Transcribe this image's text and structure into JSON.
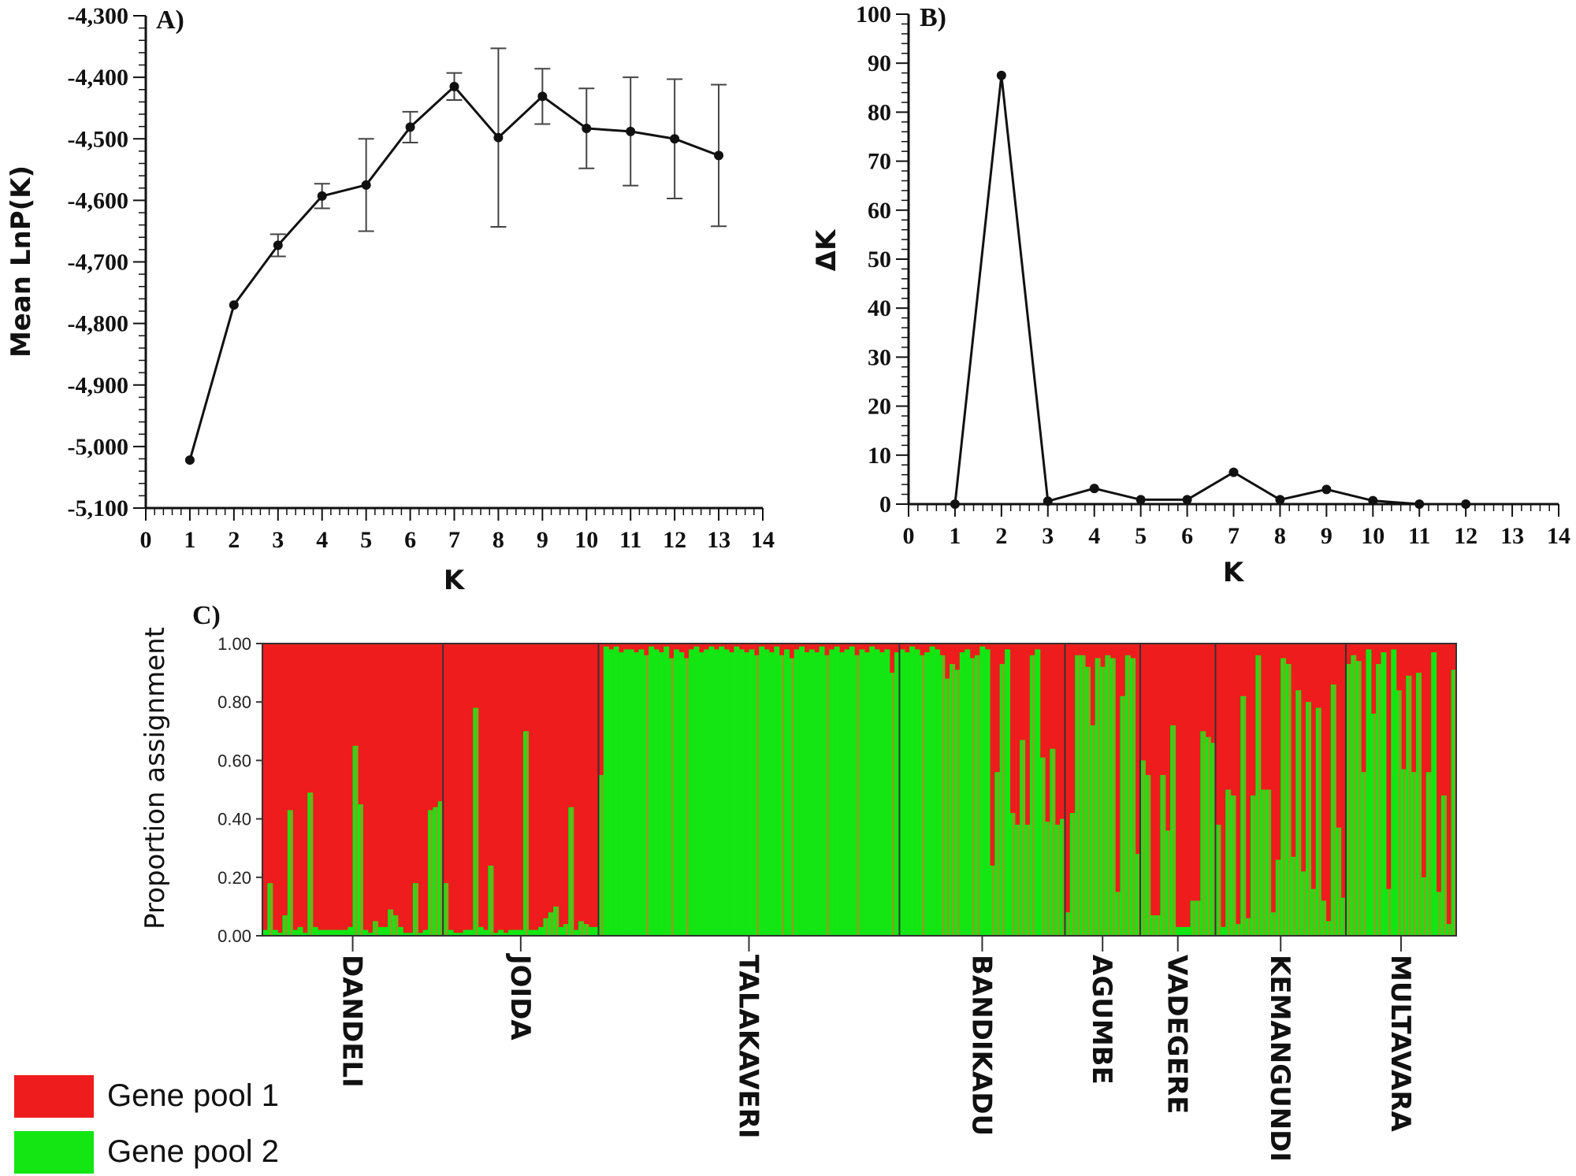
{
  "colors": {
    "gene_pool_1": "#ee1c1c",
    "gene_pool_2": "#13e613",
    "stripe": "#9a9a22",
    "line": "#111111"
  },
  "chart_data": [
    {
      "id": "A",
      "panel_label": "A)",
      "type": "line",
      "title": "",
      "xlabel": "K",
      "ylabel": "Mean LnP(K)",
      "xlim": [
        0,
        14
      ],
      "ylim": [
        -5100,
        -4300
      ],
      "x_ticks": [
        0,
        1,
        2,
        3,
        4,
        5,
        6,
        7,
        8,
        9,
        10,
        11,
        12,
        13,
        14
      ],
      "y_ticks": [
        -4300,
        -4400,
        -4500,
        -4600,
        -4700,
        -4800,
        -4900,
        -5000,
        -5100
      ],
      "y_tick_labels": [
        "-4,300",
        "-4,400",
        "-4,500",
        "-4,600",
        "-4,700",
        "-4,800",
        "-4,900",
        "-5,000",
        "-5,100"
      ],
      "x": [
        1,
        2,
        3,
        4,
        5,
        6,
        7,
        8,
        9,
        10,
        11,
        12,
        13
      ],
      "y": [
        -5022,
        -4770,
        -4673,
        -4593,
        -4575,
        -4481,
        -4415,
        -4498,
        -4431,
        -4483,
        -4488,
        -4500,
        -4527
      ],
      "error": [
        0,
        0,
        18,
        20,
        75,
        25,
        22,
        145,
        45,
        65,
        88,
        97,
        115
      ]
    },
    {
      "id": "B",
      "panel_label": "B)",
      "type": "line",
      "title": "",
      "xlabel": "K",
      "ylabel": "ΔK",
      "xlim": [
        0,
        14
      ],
      "ylim": [
        0,
        100
      ],
      "x_ticks": [
        0,
        1,
        2,
        3,
        4,
        5,
        6,
        7,
        8,
        9,
        10,
        11,
        12,
        13,
        14
      ],
      "y_ticks": [
        0,
        10,
        20,
        30,
        40,
        50,
        60,
        70,
        80,
        90,
        100
      ],
      "y_tick_labels": [
        "0",
        "10",
        "20",
        "30",
        "40",
        "50",
        "60",
        "70",
        "80",
        "90",
        "100"
      ],
      "x": [
        1,
        2,
        3,
        4,
        5,
        6,
        7,
        8,
        9,
        10,
        11,
        12
      ],
      "y": [
        0,
        87.5,
        0.6,
        3.2,
        0.9,
        0.9,
        6.5,
        0.9,
        3.0,
        0.7,
        0,
        0
      ]
    },
    {
      "id": "C",
      "panel_label": "C)",
      "type": "bar",
      "title": "",
      "xlabel": "",
      "ylabel": "Proportion assignment",
      "ylim": [
        0,
        1
      ],
      "y_ticks": [
        0,
        0.2,
        0.4,
        0.6,
        0.8,
        1.0
      ],
      "y_tick_labels": [
        "0.00",
        "0.20",
        "0.40",
        "0.60",
        "0.80",
        "1.00"
      ],
      "populations": [
        {
          "name": "DANDELI",
          "values": [
            0.02,
            0.18,
            0.02,
            0.01,
            0.07,
            0.43,
            0.02,
            0.03,
            0.01,
            0.49,
            0.03,
            0.02,
            0.02,
            0.02,
            0.02,
            0.02,
            0.02,
            0.03,
            0.65,
            0.45,
            0.02,
            0.01,
            0.05,
            0.03,
            0.03,
            0.09,
            0.07,
            0.03,
            0.01,
            0.01,
            0.18,
            0.01,
            0.02,
            0.43,
            0.44,
            0.46
          ]
        },
        {
          "name": "JOIDA",
          "values": [
            0.18,
            0.02,
            0.01,
            0.01,
            0.02,
            0.02,
            0.78,
            0.03,
            0.02,
            0.24,
            0.01,
            0.02,
            0.01,
            0.02,
            0.02,
            0.02,
            0.7,
            0.02,
            0.02,
            0.03,
            0.06,
            0.08,
            0.1,
            0.03,
            0.04,
            0.44,
            0.02,
            0.05,
            0.04,
            0.03,
            0.03
          ]
        },
        {
          "name": "TALAKAVERI",
          "values": [
            0.55,
            0.99,
            0.98,
            0.99,
            0.97,
            0.98,
            0.98,
            0.97,
            0.98,
            0.96,
            0.99,
            0.98,
            0.97,
            0.99,
            0.95,
            0.98,
            0.97,
            0.95,
            0.98,
            0.99,
            0.97,
            0.98,
            0.99,
            0.98,
            0.99,
            0.98,
            0.97,
            0.99,
            0.98,
            0.97,
            0.98,
            0.96,
            0.99,
            0.98,
            0.97,
            0.99,
            0.96,
            0.98,
            0.95,
            0.98,
            0.99,
            0.97,
            0.98,
            0.97,
            0.99,
            0.96,
            0.98,
            0.99,
            0.97,
            0.98,
            0.99,
            0.96,
            0.98,
            0.97,
            0.99,
            0.98,
            0.97,
            0.98,
            0.9,
            0.97
          ]
        },
        {
          "name": "BANDIKADU",
          "values": [
            0.98,
            0.97,
            0.99,
            0.98,
            0.96,
            0.97,
            0.99,
            0.98,
            0.96,
            0.88,
            0.93,
            0.91,
            0.97,
            0.98,
            0.95,
            0.96,
            0.99,
            0.98,
            0.24,
            0.56,
            0.93,
            0.98,
            0.42,
            0.38,
            0.67,
            0.38,
            0.96,
            0.98,
            0.61,
            0.39,
            0.64,
            0.38,
            0.4
          ]
        },
        {
          "name": "AGUMBE",
          "values": [
            0.08,
            0.42,
            0.96,
            0.96,
            0.92,
            0.72,
            0.95,
            0.92,
            0.96,
            0.95,
            0.15,
            0.82,
            0.96,
            0.95,
            0.28
          ]
        },
        {
          "name": "VADEGERE",
          "values": [
            0.6,
            0.55,
            0.07,
            0.07,
            0.55,
            0.36,
            0.72,
            0.03,
            0.03,
            0.03,
            0.12,
            0.12,
            0.7,
            0.68,
            0.66
          ]
        },
        {
          "name": "KEMANGUNDI",
          "values": [
            0.38,
            0.03,
            0.5,
            0.48,
            0.04,
            0.82,
            0.06,
            0.48,
            0.96,
            0.5,
            0.5,
            0.08,
            0.26,
            0.95,
            0.93,
            0.27,
            0.84,
            0.22,
            0.8,
            0.16,
            0.78,
            0.12,
            0.05,
            0.86,
            0.37,
            0.13
          ]
        },
        {
          "name": "MULTAVARA",
          "values": [
            0.93,
            0.96,
            0.94,
            0.56,
            0.98,
            0.76,
            0.93,
            0.97,
            0.16,
            0.98,
            0.84,
            0.57,
            0.89,
            0.56,
            0.9,
            0.2,
            0.56,
            0.97,
            0.15,
            0.48,
            0.04,
            0.91
          ]
        }
      ]
    }
  ],
  "legend": [
    {
      "label": "Gene pool 1",
      "color": "#ee1c1c"
    },
    {
      "label": "Gene pool 2",
      "color": "#13e613"
    }
  ]
}
